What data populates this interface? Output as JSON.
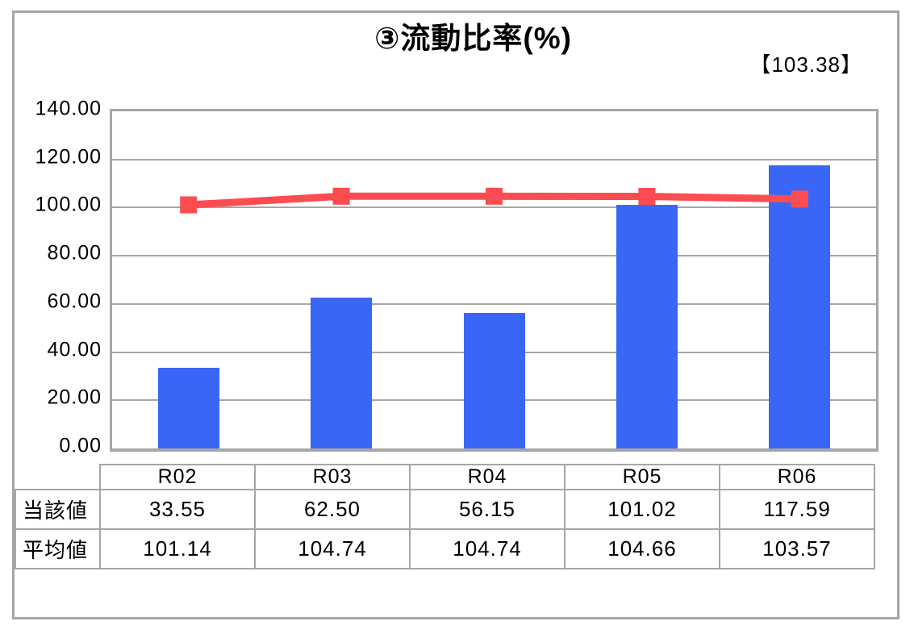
{
  "chart_data": {
    "type": "bar",
    "title": "③流動比率(%)",
    "annotation": "【103.38】",
    "categories": [
      "R02",
      "R03",
      "R04",
      "R05",
      "R06"
    ],
    "series": [
      {
        "name": "当該値",
        "kind": "bar",
        "color": "#3A66F6",
        "values": [
          33.55,
          62.5,
          56.15,
          101.02,
          117.59
        ],
        "formatted": [
          "33.55",
          "62.50",
          "56.15",
          "101.02",
          "117.59"
        ]
      },
      {
        "name": "平均値",
        "kind": "line",
        "color": "#FB4D51",
        "marker": "square",
        "values": [
          101.14,
          104.74,
          104.74,
          104.66,
          103.57
        ],
        "formatted": [
          "101.14",
          "104.74",
          "104.74",
          "104.66",
          "103.57"
        ]
      }
    ],
    "ylim": [
      0,
      140
    ],
    "ytick_step": 20,
    "ytick_labels": [
      "140.00",
      "120.00",
      "100.00",
      "80.00",
      "60.00",
      "40.00",
      "20.00",
      "0.00"
    ],
    "grid": true,
    "legend_position": "none",
    "data_table_shown": true
  },
  "colors": {
    "bar": "#3A66F6",
    "line": "#FB4D51",
    "grid_and_borders": "#A6A6A6",
    "text": "#000000",
    "background": "#FFFFFF"
  }
}
